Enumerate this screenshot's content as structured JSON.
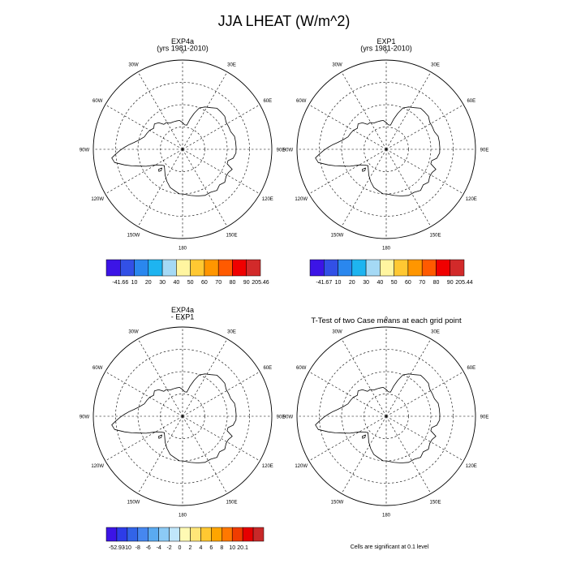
{
  "title": "JJA LHEAT (W/m^2)",
  "lon_labels": [
    "0",
    "30E",
    "60E",
    "90E",
    "120E",
    "150E",
    "180",
    "150W",
    "120W",
    "90W",
    "60W",
    "30W"
  ],
  "panels": [
    {
      "title_lines": [
        "EXP4a",
        "(yrs 1981-2010)"
      ]
    },
    {
      "title_lines": [
        "EXP1",
        "(yrs 1981-2010)"
      ]
    },
    {
      "title_lines": [
        "EXP4a",
        "- EXP1"
      ]
    },
    {
      "title_lines": [
        "T-Test of two Case means at each grid point"
      ]
    }
  ],
  "colorbars": [
    {
      "labels": [
        "-41.66",
        "10",
        "20",
        "30",
        "40",
        "50",
        "60",
        "70",
        "80",
        "90",
        "205.46"
      ],
      "colors": [
        "#3c14e6",
        "#3250e6",
        "#2a87ee",
        "#1eb4f0",
        "#a5d9f5",
        "#fff5a0",
        "#ffc832",
        "#ff9600",
        "#ff5a00",
        "#f00000",
        "#d22a2a"
      ]
    },
    {
      "labels": [
        "-41.67",
        "10",
        "20",
        "30",
        "40",
        "50",
        "60",
        "70",
        "80",
        "90",
        "205.44"
      ],
      "colors": [
        "#3c14e6",
        "#3250e6",
        "#2a87ee",
        "#1eb4f0",
        "#a5d9f5",
        "#fff5a0",
        "#ffc832",
        "#ff9600",
        "#ff5a00",
        "#f00000",
        "#d22a2a"
      ]
    },
    {
      "labels": [
        "-52.93",
        "-10",
        "-8",
        "-6",
        "-4",
        "-2",
        "0",
        "2",
        "4",
        "6",
        "8",
        "10",
        "20.1"
      ],
      "colors": [
        "#3c14e6",
        "#2d3ce8",
        "#3264e8",
        "#4687f0",
        "#5aaaf0",
        "#8ccaf5",
        "#c0e6fa",
        "#fffab4",
        "#ffe678",
        "#ffc832",
        "#ffa500",
        "#ff7800",
        "#f03c00",
        "#e60000",
        "#c82828"
      ]
    }
  ],
  "footnote": "Cells are significant at 0.1 level"
}
